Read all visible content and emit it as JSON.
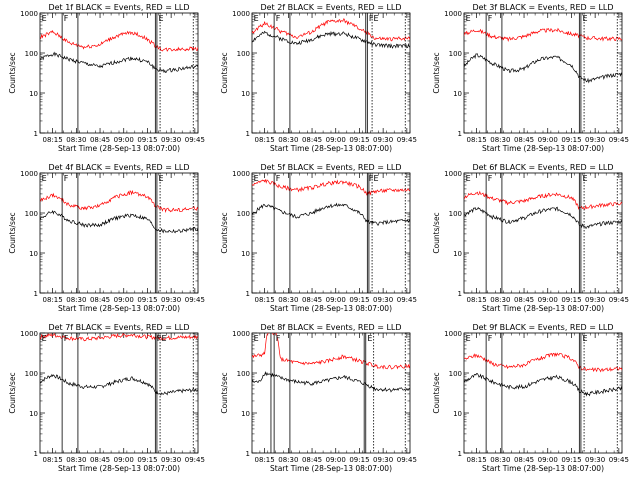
{
  "figure": {
    "xlabel": "Start Time (28-Sep-13 08:07:00)",
    "ylabel": "Counts/sec",
    "legend_note": "BLACK = Events, RED = LLD",
    "colors": {
      "events": "#000000",
      "lld": "#ff0000"
    }
  },
  "chart_data": [
    {
      "type": "line",
      "title": "Det 1f BLACK = Events, RED = LLD",
      "xlabel": "Start Time (28-Sep-13 08:07:00)",
      "ylabel": "Counts/sec",
      "yscale": "log",
      "ylim": [
        1,
        1000
      ],
      "x_ticks": [
        "08:15",
        "08:30",
        "08:45",
        "09:00",
        "09:15",
        "09:30",
        "09:45"
      ],
      "y_ticks": [
        "1",
        "10",
        "100",
        "1000"
      ],
      "series": [
        {
          "name": "Events",
          "color": "#000000",
          "x": [
            "08:07",
            "08:15",
            "08:25",
            "08:35",
            "08:45",
            "08:55",
            "09:05",
            "09:15",
            "09:20",
            "09:25",
            "09:35",
            "09:45"
          ],
          "y": [
            70,
            95,
            70,
            55,
            45,
            60,
            75,
            60,
            40,
            35,
            40,
            45
          ]
        },
        {
          "name": "LLD",
          "color": "#ff0000",
          "x": [
            "08:07",
            "08:15",
            "08:25",
            "08:35",
            "08:45",
            "08:55",
            "09:05",
            "09:15",
            "09:20",
            "09:25",
            "09:35",
            "09:45"
          ],
          "y": [
            250,
            330,
            180,
            140,
            160,
            260,
            330,
            220,
            150,
            120,
            125,
            130
          ]
        }
      ],
      "markers": {
        "solid": [
          "08:21",
          "08:31",
          "09:20",
          "09:21"
        ],
        "dotted": [
          "09:23",
          "09:44"
        ],
        "labels": [
          {
            "text": "E",
            "x": "08:08"
          },
          {
            "text": "F",
            "x": "08:22"
          },
          {
            "text": "E",
            "x": "09:22"
          }
        ]
      }
    },
    {
      "type": "line",
      "title": "Det 2f BLACK = Events, RED = LLD",
      "xlabel": "Start Time (28-Sep-13 08:07:00)",
      "ylabel": "Counts/sec",
      "yscale": "log",
      "ylim": [
        1,
        1000
      ],
      "x_ticks": [
        "08:15",
        "08:30",
        "08:45",
        "09:00",
        "09:15",
        "09:30",
        "09:45"
      ],
      "y_ticks": [
        "1",
        "10",
        "100",
        "1000"
      ],
      "series": [
        {
          "name": "Events",
          "color": "#000000",
          "x": [
            "08:07",
            "08:15",
            "08:25",
            "08:35",
            "08:45",
            "08:55",
            "09:05",
            "09:15",
            "09:25",
            "09:35",
            "09:45"
          ],
          "y": [
            200,
            320,
            230,
            170,
            220,
            300,
            310,
            220,
            160,
            150,
            150
          ]
        },
        {
          "name": "LLD",
          "color": "#ff0000",
          "x": [
            "08:07",
            "08:15",
            "08:25",
            "08:35",
            "08:45",
            "08:55",
            "09:05",
            "09:15",
            "09:25",
            "09:35",
            "09:45"
          ],
          "y": [
            300,
            550,
            350,
            250,
            330,
            600,
            650,
            400,
            230,
            220,
            240
          ]
        }
      ],
      "markers": {
        "solid": [
          "08:21",
          "08:31",
          "09:19",
          "09:20"
        ],
        "dotted": [
          "09:23",
          "09:44"
        ],
        "labels": [
          {
            "text": "E",
            "x": "08:08"
          },
          {
            "text": "F",
            "x": "08:22"
          },
          {
            "text": "FE",
            "x": "09:21"
          }
        ]
      }
    },
    {
      "type": "line",
      "title": "Det 3f BLACK = Events, RED = LLD",
      "xlabel": "Start Time (28-Sep-13 08:07:00)",
      "ylabel": "Counts/sec",
      "yscale": "log",
      "ylim": [
        1,
        1000
      ],
      "x_ticks": [
        "08:15",
        "08:30",
        "08:45",
        "09:00",
        "09:15",
        "09:30",
        "09:45"
      ],
      "y_ticks": [
        "1",
        "10",
        "100",
        "1000"
      ],
      "series": [
        {
          "name": "Events",
          "color": "#000000",
          "x": [
            "08:07",
            "08:15",
            "08:25",
            "08:35",
            "08:45",
            "08:55",
            "09:05",
            "09:15",
            "09:20",
            "09:25",
            "09:35",
            "09:45"
          ],
          "y": [
            45,
            90,
            55,
            35,
            40,
            70,
            80,
            50,
            25,
            20,
            25,
            30
          ]
        },
        {
          "name": "LLD",
          "color": "#ff0000",
          "x": [
            "08:07",
            "08:15",
            "08:25",
            "08:35",
            "08:45",
            "08:55",
            "09:05",
            "09:15",
            "09:25",
            "09:35",
            "09:45"
          ],
          "y": [
            300,
            380,
            260,
            220,
            260,
            360,
            380,
            300,
            240,
            230,
            230
          ]
        }
      ],
      "markers": {
        "solid": [
          "08:21",
          "08:31",
          "09:20",
          "09:21"
        ],
        "dotted": [
          "09:23",
          "09:44"
        ],
        "labels": [
          {
            "text": "E",
            "x": "08:08"
          },
          {
            "text": "F",
            "x": "08:22"
          },
          {
            "text": "E",
            "x": "09:22"
          }
        ]
      }
    },
    {
      "type": "line",
      "title": "Det 4f BLACK = Events, RED = LLD",
      "xlabel": "Start Time (28-Sep-13 08:07:00)",
      "ylabel": "Counts/sec",
      "yscale": "log",
      "ylim": [
        1,
        1000
      ],
      "x_ticks": [
        "08:15",
        "08:30",
        "08:45",
        "09:00",
        "09:15",
        "09:30",
        "09:45"
      ],
      "y_ticks": [
        "1",
        "10",
        "100",
        "1000"
      ],
      "series": [
        {
          "name": "Events",
          "color": "#000000",
          "x": [
            "08:07",
            "08:15",
            "08:25",
            "08:35",
            "08:45",
            "08:55",
            "09:05",
            "09:15",
            "09:20",
            "09:25",
            "09:35",
            "09:45"
          ],
          "y": [
            70,
            110,
            65,
            50,
            50,
            75,
            90,
            70,
            40,
            35,
            35,
            40
          ]
        },
        {
          "name": "LLD",
          "color": "#ff0000",
          "x": [
            "08:07",
            "08:15",
            "08:25",
            "08:35",
            "08:45",
            "08:55",
            "09:05",
            "09:15",
            "09:20",
            "09:25",
            "09:35",
            "09:45"
          ],
          "y": [
            200,
            280,
            160,
            130,
            150,
            250,
            330,
            250,
            150,
            120,
            120,
            130
          ]
        }
      ],
      "markers": {
        "solid": [
          "08:21",
          "08:31",
          "09:20",
          "09:21"
        ],
        "dotted": [
          "09:23",
          "09:44"
        ],
        "labels": [
          {
            "text": "E",
            "x": "08:08"
          },
          {
            "text": "F",
            "x": "08:22"
          },
          {
            "text": "E",
            "x": "09:22"
          }
        ]
      }
    },
    {
      "type": "line",
      "title": "Det 5f BLACK = Events, RED = LLD",
      "xlabel": "Start Time (28-Sep-13 08:07:00)",
      "ylabel": "Counts/sec",
      "yscale": "log",
      "ylim": [
        1,
        1000
      ],
      "x_ticks": [
        "08:15",
        "08:30",
        "08:45",
        "09:00",
        "09:15",
        "09:30",
        "09:45"
      ],
      "y_ticks": [
        "1",
        "10",
        "100",
        "1000"
      ],
      "series": [
        {
          "name": "Events",
          "color": "#000000",
          "x": [
            "08:07",
            "08:15",
            "08:25",
            "08:35",
            "08:45",
            "08:55",
            "09:05",
            "09:15",
            "09:20",
            "09:25",
            "09:35",
            "09:45"
          ],
          "y": [
            90,
            160,
            110,
            80,
            100,
            150,
            160,
            100,
            60,
            55,
            60,
            65
          ]
        },
        {
          "name": "LLD",
          "color": "#ff0000",
          "x": [
            "08:07",
            "08:15",
            "08:25",
            "08:35",
            "08:45",
            "08:55",
            "09:05",
            "09:15",
            "09:20",
            "09:25",
            "09:35",
            "09:45"
          ],
          "y": [
            500,
            650,
            450,
            380,
            430,
            550,
            600,
            450,
            300,
            350,
            370,
            380
          ]
        }
      ],
      "markers": {
        "solid": [
          "08:21",
          "08:31",
          "09:20",
          "09:21"
        ],
        "dotted": [
          "09:23",
          "09:44"
        ],
        "labels": [
          {
            "text": "E",
            "x": "08:08"
          },
          {
            "text": "F",
            "x": "08:22"
          },
          {
            "text": "FE",
            "x": "09:21"
          }
        ]
      }
    },
    {
      "type": "line",
      "title": "Det 6f BLACK = Events, RED = LLD",
      "xlabel": "Start Time (28-Sep-13 08:07:00)",
      "ylabel": "Counts/sec",
      "yscale": "log",
      "ylim": [
        1,
        1000
      ],
      "x_ticks": [
        "08:15",
        "08:30",
        "08:45",
        "09:00",
        "09:15",
        "09:30",
        "09:45"
      ],
      "y_ticks": [
        "1",
        "10",
        "100",
        "1000"
      ],
      "series": [
        {
          "name": "Events",
          "color": "#000000",
          "x": [
            "08:07",
            "08:15",
            "08:25",
            "08:35",
            "08:45",
            "08:55",
            "09:05",
            "09:15",
            "09:20",
            "09:25",
            "09:35",
            "09:45"
          ],
          "y": [
            90,
            130,
            80,
            60,
            75,
            110,
            130,
            90,
            50,
            45,
            55,
            60
          ]
        },
        {
          "name": "LLD",
          "color": "#ff0000",
          "x": [
            "08:07",
            "08:15",
            "08:25",
            "08:35",
            "08:45",
            "08:55",
            "09:05",
            "09:15",
            "09:20",
            "09:25",
            "09:35",
            "09:45"
          ],
          "y": [
            250,
            330,
            230,
            180,
            200,
            260,
            300,
            240,
            130,
            140,
            160,
            170
          ]
        }
      ],
      "markers": {
        "solid": [
          "08:21",
          "08:31",
          "09:20",
          "09:21"
        ],
        "dotted": [
          "09:23",
          "09:44"
        ],
        "labels": [
          {
            "text": "E",
            "x": "08:08"
          },
          {
            "text": "F",
            "x": "08:22"
          },
          {
            "text": "E",
            "x": "09:22"
          }
        ]
      }
    },
    {
      "type": "line",
      "title": "Det 7f BLACK = Events, RED = LLD",
      "xlabel": "Start Time (28-Sep-13 08:07:00)",
      "ylabel": "Counts/sec",
      "yscale": "log",
      "ylim": [
        1,
        1000
      ],
      "x_ticks": [
        "08:15",
        "08:30",
        "08:45",
        "09:00",
        "09:15",
        "09:30",
        "09:45"
      ],
      "y_ticks": [
        "1",
        "10",
        "100",
        "1000"
      ],
      "series": [
        {
          "name": "Events",
          "color": "#000000",
          "x": [
            "08:07",
            "08:15",
            "08:25",
            "08:35",
            "08:45",
            "08:55",
            "09:05",
            "09:15",
            "09:20",
            "09:25",
            "09:35",
            "09:45"
          ],
          "y": [
            60,
            90,
            55,
            45,
            45,
            60,
            75,
            55,
            35,
            30,
            35,
            38
          ]
        },
        {
          "name": "LLD",
          "color": "#ff0000",
          "x": [
            "08:07",
            "08:15",
            "08:25",
            "08:35",
            "08:45",
            "08:55",
            "09:05",
            "09:15",
            "09:25",
            "09:35",
            "09:45"
          ],
          "y": [
            800,
            900,
            750,
            700,
            750,
            850,
            900,
            800,
            750,
            780,
            800
          ]
        }
      ],
      "markers": {
        "solid": [
          "08:21",
          "08:31",
          "09:20",
          "09:21"
        ],
        "dotted": [
          "09:23",
          "09:44"
        ],
        "labels": [
          {
            "text": "E",
            "x": "08:08"
          },
          {
            "text": "F",
            "x": "08:22"
          },
          {
            "text": "FE",
            "x": "09:21"
          }
        ]
      }
    },
    {
      "type": "line",
      "title": "Det 8f BLACK = Events, RED = LLD",
      "xlabel": "Start Time (28-Sep-13 08:07:00)",
      "ylabel": "Counts/sec",
      "yscale": "log",
      "ylim": [
        1,
        1000
      ],
      "x_ticks": [
        "08:15",
        "08:30",
        "08:45",
        "09:00",
        "09:15",
        "09:30",
        "09:45"
      ],
      "y_ticks": [
        "1",
        "10",
        "100",
        "1000"
      ],
      "series": [
        {
          "name": "Events",
          "color": "#000000",
          "x": [
            "08:07",
            "08:12",
            "08:15",
            "08:20",
            "08:25",
            "08:35",
            "08:45",
            "08:55",
            "09:05",
            "09:15",
            "09:25",
            "09:35",
            "09:45"
          ],
          "y": [
            60,
            60,
            100,
            90,
            75,
            60,
            55,
            65,
            80,
            60,
            40,
            38,
            40
          ]
        },
        {
          "name": "LLD",
          "color": "#ff0000",
          "x": [
            "08:07",
            "08:15",
            "08:17",
            "08:22",
            "08:25",
            "08:35",
            "08:45",
            "08:55",
            "09:05",
            "09:15",
            "09:25",
            "09:35",
            "09:45"
          ],
          "y": [
            250,
            300,
            1000,
            1000,
            220,
            180,
            170,
            200,
            260,
            200,
            150,
            140,
            150
          ]
        }
      ],
      "markers": {
        "solid": [
          "08:19",
          "08:21",
          "08:31",
          "09:18",
          "09:19"
        ],
        "dotted": [
          "09:24",
          "09:44"
        ],
        "labels": [
          {
            "text": "E",
            "x": "08:08"
          },
          {
            "text": "F",
            "x": "08:22"
          },
          {
            "text": "E",
            "x": "09:20"
          }
        ]
      }
    },
    {
      "type": "line",
      "title": "Det 9f BLACK = Events, RED = LLD",
      "xlabel": "Start Time (28-Sep-13 08:07:00)",
      "ylabel": "Counts/sec",
      "yscale": "log",
      "ylim": [
        1,
        1000
      ],
      "x_ticks": [
        "08:15",
        "08:30",
        "08:45",
        "09:00",
        "09:15",
        "09:30",
        "09:45"
      ],
      "y_ticks": [
        "1",
        "10",
        "100",
        "1000"
      ],
      "series": [
        {
          "name": "Events",
          "color": "#000000",
          "x": [
            "08:07",
            "08:15",
            "08:25",
            "08:35",
            "08:45",
            "08:55",
            "09:05",
            "09:15",
            "09:20",
            "09:25",
            "09:35",
            "09:45"
          ],
          "y": [
            60,
            90,
            60,
            45,
            45,
            65,
            80,
            60,
            35,
            30,
            35,
            40
          ]
        },
        {
          "name": "LLD",
          "color": "#ff0000",
          "x": [
            "08:07",
            "08:15",
            "08:25",
            "08:35",
            "08:45",
            "08:55",
            "09:05",
            "09:15",
            "09:20",
            "09:25",
            "09:35",
            "09:45"
          ],
          "y": [
            220,
            280,
            170,
            140,
            160,
            230,
            300,
            230,
            140,
            120,
            120,
            130
          ]
        }
      ],
      "markers": {
        "solid": [
          "08:21",
          "08:31",
          "09:20",
          "09:21"
        ],
        "dotted": [
          "09:23",
          "09:44"
        ],
        "labels": [
          {
            "text": "E",
            "x": "08:08"
          },
          {
            "text": "F",
            "x": "08:22"
          },
          {
            "text": "E",
            "x": "09:22"
          }
        ]
      }
    }
  ]
}
